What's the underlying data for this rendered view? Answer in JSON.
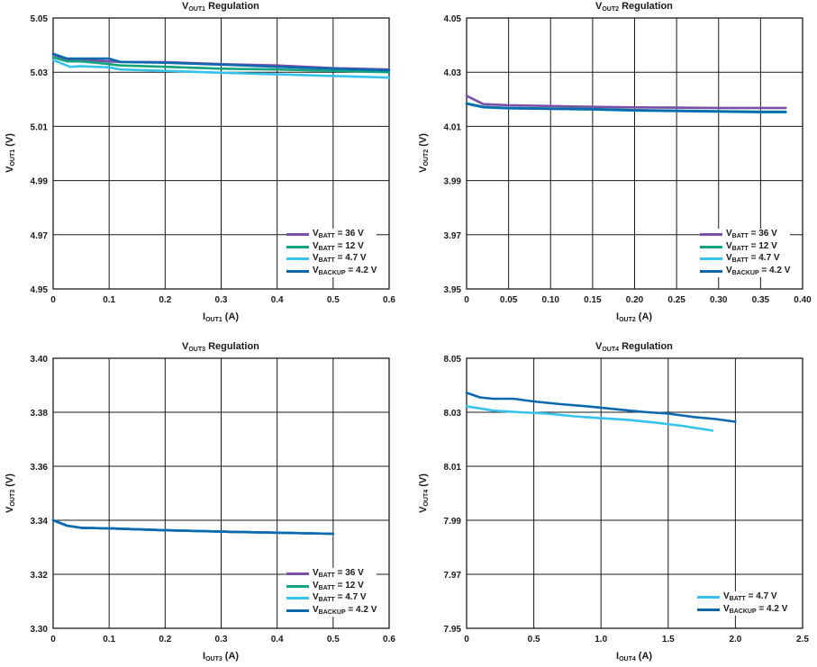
{
  "colors": {
    "vbatt_36": "#7b4fa6",
    "vbatt_12": "#12a37f",
    "vbatt_47": "#35c3ee",
    "vbackup": "#0d69ae",
    "grid": "#1a1a1a"
  },
  "chart_data": [
    {
      "type": "line",
      "title": "V",
      "title_sub": "OUT1",
      "title_rest": " Regulation",
      "xlabel": "I",
      "xlabel_sub": "OUT1",
      "xlabel_rest": " (A)",
      "ylabel": "V",
      "ylabel_sub": "OUT1",
      "ylabel_rest": " (V)",
      "xlim": [
        0,
        0.6
      ],
      "ylim": [
        4.95,
        5.05
      ],
      "xticks": [
        "0",
        "0.1",
        "0.2",
        "0.3",
        "0.4",
        "0.5",
        "0.6"
      ],
      "yticks": [
        "4.95",
        "4.97",
        "4.99",
        "5.01",
        "5.03",
        "5.05"
      ],
      "series": [
        {
          "name": "V",
          "sub": "BATT",
          "label": " = 36 V",
          "color_key": "vbatt_36",
          "x": [
            0,
            0.025,
            0.05,
            0.1,
            0.12,
            0.2,
            0.3,
            0.4,
            0.5,
            0.6
          ],
          "y": [
            5.0365,
            5.0345,
            5.0345,
            5.034,
            5.0338,
            5.0337,
            5.033,
            5.0325,
            5.0315,
            5.031
          ]
        },
        {
          "name": "V",
          "sub": "BATT",
          "label": " = 12 V",
          "color_key": "vbatt_12",
          "x": [
            0,
            0.025,
            0.05,
            0.1,
            0.12,
            0.2,
            0.3,
            0.4,
            0.5,
            0.6
          ],
          "y": [
            5.0355,
            5.034,
            5.034,
            5.033,
            5.0325,
            5.032,
            5.0313,
            5.031,
            5.0305,
            5.03
          ]
        },
        {
          "name": "V",
          "sub": "BATT",
          "label": " = 4.7 V",
          "color_key": "vbatt_47",
          "x": [
            0,
            0.03,
            0.05,
            0.1,
            0.12,
            0.2,
            0.3,
            0.4,
            0.5,
            0.6
          ],
          "y": [
            5.0345,
            5.032,
            5.0322,
            5.0318,
            5.031,
            5.0305,
            5.0298,
            5.0292,
            5.0286,
            5.028
          ]
        },
        {
          "name": "V",
          "sub": "BACKUP",
          "label": " = 4.2 V",
          "color_key": "vbackup",
          "x": [
            0,
            0.025,
            0.05,
            0.1,
            0.12,
            0.2,
            0.3,
            0.4,
            0.5,
            0.6
          ],
          "y": [
            5.0368,
            5.035,
            5.035,
            5.035,
            5.0338,
            5.0335,
            5.0328,
            5.032,
            5.0313,
            5.0307
          ]
        }
      ]
    },
    {
      "type": "line",
      "title": "V",
      "title_sub": "OUT2",
      "title_rest": " Regulation",
      "xlabel": "I",
      "xlabel_sub": "OUT2",
      "xlabel_rest": " (A)",
      "ylabel": "V",
      "ylabel_sub": "OUT2",
      "ylabel_rest": " (V)",
      "xlim": [
        0,
        0.4
      ],
      "ylim": [
        3.95,
        4.05
      ],
      "xticks": [
        "0",
        "0.05",
        "0.10",
        "0.15",
        "0.20",
        "0.25",
        "0.30",
        "0.35",
        "0.40"
      ],
      "yticks": [
        "3.95",
        "3.97",
        "3.99",
        "4.01",
        "4.03",
        "4.05"
      ],
      "series": [
        {
          "name": "V",
          "sub": "BATT",
          "label": " = 36 V",
          "color_key": "vbatt_36",
          "x": [
            0,
            0.02,
            0.05,
            0.1,
            0.15,
            0.2,
            0.25,
            0.3,
            0.35,
            0.38
          ],
          "y": [
            4.0213,
            4.0182,
            4.0178,
            4.0175,
            4.0172,
            4.017,
            4.0169,
            4.0168,
            4.0168,
            4.0168
          ]
        },
        {
          "name": "V",
          "sub": "BATT",
          "label": " = 12 V",
          "color_key": "vbatt_12",
          "x": [
            0,
            0.02,
            0.05,
            0.1,
            0.15,
            0.2,
            0.25,
            0.3,
            0.35,
            0.38
          ],
          "y": [
            4.0185,
            4.0172,
            4.0168,
            4.0166,
            4.0164,
            4.016,
            4.0158,
            4.0156,
            4.0154,
            4.0154
          ]
        },
        {
          "name": "V",
          "sub": "BATT",
          "label": " = 4.7 V",
          "color_key": "vbatt_47",
          "x": [
            0,
            0.02,
            0.05,
            0.1,
            0.15,
            0.2,
            0.25,
            0.3,
            0.35,
            0.38
          ],
          "y": [
            4.0183,
            4.017,
            4.0166,
            4.0164,
            4.0162,
            4.0158,
            4.0156,
            4.0154,
            4.0152,
            4.0152
          ]
        },
        {
          "name": "V",
          "sub": "BACKUP",
          "label": " = 4.2 V",
          "color_key": "vbackup",
          "x": [
            0,
            0.02,
            0.05,
            0.1,
            0.15,
            0.2,
            0.25,
            0.3,
            0.35,
            0.38
          ],
          "y": [
            4.0184,
            4.0171,
            4.0167,
            4.0165,
            4.0163,
            4.0159,
            4.0157,
            4.0155,
            4.0153,
            4.0153
          ]
        }
      ]
    },
    {
      "type": "line",
      "title": "V",
      "title_sub": "OUT3",
      "title_rest": " Regulation",
      "xlabel": "I",
      "xlabel_sub": "OUT3",
      "xlabel_rest": " (A)",
      "ylabel": "V",
      "ylabel_sub": "OUT3",
      "ylabel_rest": " (V)",
      "xlim": [
        0,
        0.6
      ],
      "ylim": [
        3.3,
        3.4
      ],
      "xticks": [
        "0",
        "0.1",
        "0.2",
        "0.3",
        "0.4",
        "0.5",
        "0.6"
      ],
      "yticks": [
        "3.30",
        "3.32",
        "3.34",
        "3.36",
        "3.38",
        "3.40"
      ],
      "series": [
        {
          "name": "V",
          "sub": "BATT",
          "label": " = 36 V",
          "color_key": "vbatt_36",
          "x": [
            0,
            0.025,
            0.05,
            0.1,
            0.2,
            0.3,
            0.4,
            0.5
          ],
          "y": [
            3.34,
            3.338,
            3.3372,
            3.337,
            3.3363,
            3.3358,
            3.3354,
            3.335
          ]
        },
        {
          "name": "V",
          "sub": "BATT",
          "label": " = 12 V",
          "color_key": "vbatt_12",
          "x": [
            0,
            0.025,
            0.05,
            0.1,
            0.2,
            0.3,
            0.4,
            0.5
          ],
          "y": [
            3.34,
            3.338,
            3.3372,
            3.337,
            3.3363,
            3.3358,
            3.3354,
            3.335
          ]
        },
        {
          "name": "V",
          "sub": "BATT",
          "label": " = 4.7 V",
          "color_key": "vbatt_47",
          "x": [
            0,
            0.025,
            0.05,
            0.1,
            0.2,
            0.3,
            0.4,
            0.5
          ],
          "y": [
            3.34,
            3.338,
            3.3372,
            3.337,
            3.3363,
            3.3358,
            3.3354,
            3.335
          ]
        },
        {
          "name": "V",
          "sub": "BACKUP",
          "label": " = 4.2 V",
          "color_key": "vbackup",
          "x": [
            0,
            0.025,
            0.05,
            0.1,
            0.2,
            0.3,
            0.4,
            0.5
          ],
          "y": [
            3.34,
            3.338,
            3.3372,
            3.337,
            3.3363,
            3.3358,
            3.3354,
            3.335
          ]
        }
      ]
    },
    {
      "type": "line",
      "title": "V",
      "title_sub": "OUT4",
      "title_rest": " Regulation",
      "xlabel": "I",
      "xlabel_sub": "OUT4",
      "xlabel_rest": " (A)",
      "ylabel": "V",
      "ylabel_sub": "OUT4",
      "ylabel_rest": " (V)",
      "xlim": [
        0,
        2.5
      ],
      "ylim": [
        7.95,
        8.05
      ],
      "xticks": [
        "0",
        "0.5",
        "1.0",
        "1.5",
        "2.0",
        "2.5"
      ],
      "yticks": [
        "7.95",
        "7.97",
        "7.99",
        "8.01",
        "8.03",
        "8.05"
      ],
      "series": [
        {
          "name": "V",
          "sub": "BATT",
          "label": " = 4.7 V",
          "color_key": "vbatt_47",
          "x": [
            0,
            0.2,
            0.4,
            0.6,
            0.8,
            1.0,
            1.2,
            1.4,
            1.6,
            1.83
          ],
          "y": [
            8.0322,
            8.0306,
            8.03,
            8.0295,
            8.0285,
            8.0278,
            8.0272,
            8.0262,
            8.025,
            8.0232
          ]
        },
        {
          "name": "V",
          "sub": "BACKUP",
          "label": " = 4.2 V",
          "color_key": "vbackup",
          "x": [
            0,
            0.1,
            0.2,
            0.35,
            0.5,
            0.7,
            0.9,
            1.1,
            1.3,
            1.5,
            1.7,
            1.85,
            2.0
          ],
          "y": [
            8.0372,
            8.0355,
            8.035,
            8.035,
            8.034,
            8.033,
            8.0322,
            8.0312,
            8.0302,
            8.0295,
            8.0282,
            8.0275,
            8.0265
          ]
        }
      ]
    }
  ]
}
